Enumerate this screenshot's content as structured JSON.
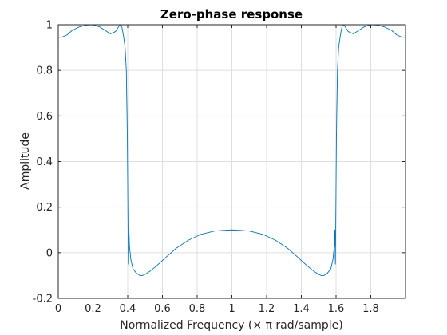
{
  "chart_data": {
    "type": "line",
    "title": "Zero-phase response",
    "xlabel": "Normalized Frequency (× π rad/sample)",
    "ylabel": "Amplitude",
    "xlim": [
      0,
      2
    ],
    "ylim": [
      -0.2,
      1
    ],
    "xticks": [
      0,
      0.2,
      0.4,
      0.6,
      0.8,
      1,
      1.2,
      1.4,
      1.6,
      1.8
    ],
    "xtick_labels": [
      "0",
      "0.2",
      "0.4",
      "0.6",
      "0.8",
      "1",
      "1.2",
      "1.4",
      "1.6",
      "1.8"
    ],
    "yticks": [
      -0.2,
      0,
      0.2,
      0.4,
      0.6,
      0.8,
      1
    ],
    "ytick_labels": [
      "-0.2",
      "0",
      "0.2",
      "0.4",
      "0.6",
      "0.8",
      "1"
    ],
    "grid": true,
    "line_color": "#0072BD",
    "series": [
      {
        "x": [
          0,
          0.02,
          0.05,
          0.08,
          0.12,
          0.16,
          0.19,
          0.21,
          0.24,
          0.27,
          0.3,
          0.33,
          0.355,
          0.365,
          0.375,
          0.385,
          0.392,
          0.398,
          0.4,
          0.402,
          0.404,
          0.407,
          0.41,
          0.418,
          0.43,
          0.45,
          0.47,
          0.485,
          0.5,
          0.53,
          0.57,
          0.62,
          0.68,
          0.75,
          0.82,
          0.9,
          0.95,
          1.0,
          1.05,
          1.1,
          1.18,
          1.25,
          1.32,
          1.38,
          1.43,
          1.47,
          1.5,
          1.515,
          1.53,
          1.55,
          1.57,
          1.582,
          1.59,
          1.593,
          1.596,
          1.598,
          1.6,
          1.602,
          1.608,
          1.615,
          1.625,
          1.635,
          1.645,
          1.67,
          1.7,
          1.73,
          1.76,
          1.79,
          1.81,
          1.84,
          1.88,
          1.92,
          1.95,
          1.98,
          2.0
        ],
        "y": [
          0.945,
          0.945,
          0.955,
          0.975,
          0.99,
          0.998,
          1.0,
          0.998,
          0.99,
          0.975,
          0.96,
          0.97,
          1.0,
          0.995,
          0.955,
          0.9,
          0.8,
          0.5,
          0.3,
          0.1,
          -0.05,
          0.1,
          0.03,
          -0.03,
          -0.07,
          -0.09,
          -0.1,
          -0.1,
          -0.095,
          -0.08,
          -0.055,
          -0.02,
          0.02,
          0.055,
          0.08,
          0.095,
          0.098,
          0.1,
          0.098,
          0.095,
          0.08,
          0.055,
          0.02,
          -0.02,
          -0.055,
          -0.08,
          -0.095,
          -0.1,
          -0.1,
          -0.09,
          -0.07,
          -0.03,
          0.03,
          0.1,
          -0.05,
          0.1,
          0.3,
          0.5,
          0.8,
          0.9,
          0.955,
          0.995,
          1.0,
          0.97,
          0.96,
          0.975,
          0.99,
          0.998,
          1.0,
          0.998,
          0.99,
          0.975,
          0.955,
          0.945,
          0.945
        ]
      }
    ]
  }
}
